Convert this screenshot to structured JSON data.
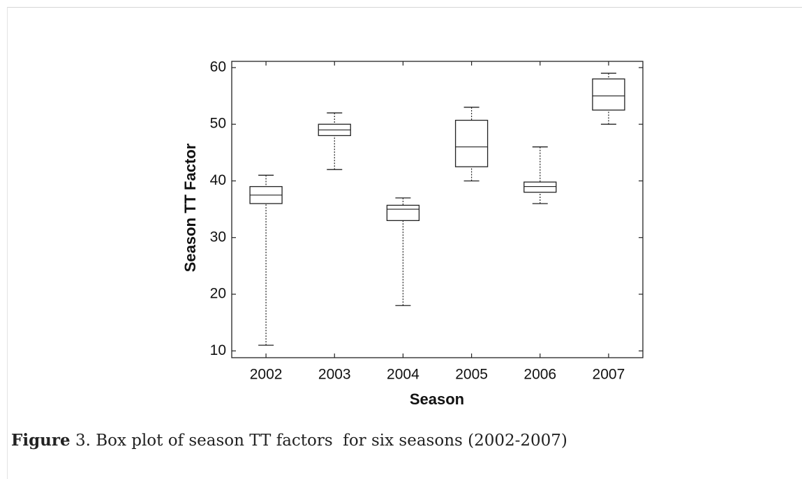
{
  "chart_data": {
    "type": "box",
    "ylabel": "Season TT Factor",
    "xlabel": "Season",
    "figure_label": "Figure",
    "caption": "3. Box plot of season TT factors  for six seasons (2002-2007)",
    "categories": [
      "2002",
      "2003",
      "2004",
      "2005",
      "2006",
      "2007"
    ],
    "boxes": [
      {
        "low": 11,
        "q1": 36,
        "median": 37.5,
        "q3": 39,
        "high": 41
      },
      {
        "low": 42,
        "q1": 48,
        "median": 49,
        "q3": 50,
        "high": 52
      },
      {
        "low": 18,
        "q1": 33,
        "median": 35,
        "q3": 35.7,
        "high": 37
      },
      {
        "low": 40,
        "q1": 42.5,
        "median": 46,
        "q3": 50.7,
        "high": 53
      },
      {
        "low": 36,
        "q1": 38,
        "median": 39,
        "q3": 39.8,
        "high": 46
      },
      {
        "low": 50,
        "q1": 52.5,
        "median": 55,
        "q3": 58,
        "high": 59
      }
    ],
    "color": "#222222",
    "ylim": [
      8.8,
      61.1
    ],
    "yticks": [
      10,
      20,
      30,
      40,
      50,
      60
    ],
    "grid": false
  }
}
